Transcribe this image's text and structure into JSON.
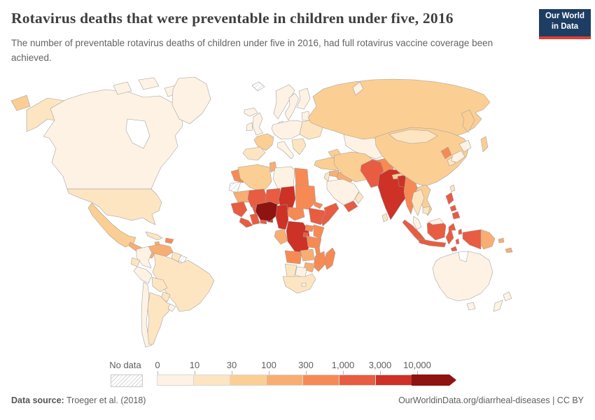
{
  "header": {
    "title": "Rotavirus deaths that were preventable in children under five, 2016",
    "subtitle": "The number of preventable rotavirus deaths of children under five in 2016, had full rotavirus vaccine coverage been achieved.",
    "logo_line1": "Our World",
    "logo_line2": "in Data",
    "logo_bg": "#1d3d63",
    "logo_accent": "#e23d33"
  },
  "footer": {
    "source_label": "Data source:",
    "source_value": " Troeger et al. (2018)",
    "license": "OurWorldinData.org/diarrheal-diseases | CC BY"
  },
  "chart_data": {
    "type": "heatmap",
    "subtype": "choropleth-world-map",
    "title": "Rotavirus deaths that were preventable in children under five, 2016",
    "legend": {
      "no_data_label": "No data",
      "ticks": [
        "0",
        "10",
        "30",
        "100",
        "300",
        "1,000",
        "3,000",
        "10,000"
      ],
      "position": "bottom"
    },
    "bins": [
      {
        "range": "0-10",
        "color": "#FDF2E4"
      },
      {
        "range": "10-30",
        "color": "#FDE5C2"
      },
      {
        "range": "30-100",
        "color": "#FBCE93"
      },
      {
        "range": "100-300",
        "color": "#F8AE72"
      },
      {
        "range": "300-1000",
        "color": "#F78A54"
      },
      {
        "range": "1000-3000",
        "color": "#E85C41"
      },
      {
        "range": "3000-10000",
        "color": "#CE3126"
      },
      {
        "range": "10000+",
        "color": "#8F1310"
      }
    ],
    "no_data_regions": [
      "western-sahara",
      "french-guiana",
      "svalbard"
    ],
    "countries": {
      "canada": 0,
      "arctic-islands-1": 0,
      "arctic-islands-2": 0,
      "arctic-islands-3": 0,
      "greenland": 0,
      "iceland": 0,
      "alaska": 1,
      "chukotka": 2,
      "usa": 1,
      "mexico": 2,
      "central-america": 3,
      "cuba": 1,
      "jamaica": 3,
      "hispaniola": 4,
      "venezuela": 3,
      "colombia": 0,
      "guyana-suriname": 1,
      "ecuador": 1,
      "peru": 0,
      "brazil": 1,
      "bolivia": 1,
      "paraguay": 1,
      "chile": 0,
      "argentina": 1,
      "uruguay": 0,
      "uk": 0,
      "ireland": 0,
      "norway": 0,
      "sweden": 0,
      "finland": 0,
      "baltics": 0,
      "denmark": 0,
      "central-europe": 0,
      "eastern-europe": 1,
      "france": 2,
      "iberia": 1,
      "italy": 0,
      "balkans": 1,
      "russia": 2,
      "kamchatka": 2,
      "sakhalin": 2,
      "novaya-zemlya": 0,
      "kazakhstan": 0,
      "central-asia": 3,
      "caucasus": 2,
      "turkey": 2,
      "syria": 3,
      "iraq": 3,
      "jordan-israel": 1,
      "saudi-arabia": 0,
      "yemen": 5,
      "oman": 1,
      "iran": 2,
      "afghanistan": 4,
      "pakistan": 5,
      "india": 6,
      "nepal": 2,
      "bangladesh": 6,
      "myanmar": 4,
      "sri-lanka": 1,
      "china": 2,
      "mongolia": 1,
      "north-korea": 4,
      "south-korea": 1,
      "japan-north": 0,
      "japan-south": 0,
      "taiwan": 1,
      "vietnam-laos": 2,
      "thailand": 1,
      "cambodia": 1,
      "malay-peninsula": 0,
      "sumatra": 5,
      "java": 5,
      "borneo-indonesia": 5,
      "borneo-malaysia": 0,
      "sulawesi": 5,
      "moluccas-1": 5,
      "moluccas-2": 5,
      "west-papua": 5,
      "papua-new-guinea": 3,
      "philippines-luzon": 5,
      "philippines-visayas": 5,
      "philippines-mindanao": 5,
      "east-timor": 5,
      "solomon-islands": 3,
      "new-caledonia": 3,
      "australia": 0,
      "tasmania": 0,
      "new-zealand-north": 0,
      "new-zealand-south": 0,
      "morocco": 4,
      "algeria": 2,
      "tunisia": 3,
      "libya": 0,
      "egypt": 4,
      "mauritania": 3,
      "mali": 5,
      "niger": 5,
      "chad": 6,
      "sudan": 4,
      "eritrea": 4,
      "senegal-guinea": 5,
      "sierra-leone-liberia": 5,
      "ivory-coast": 5,
      "ghana": 5,
      "togo-benin": 6,
      "burkina-faso": 5,
      "nigeria": 7,
      "cameroon": 6,
      "central-african-republic": 4,
      "gabon-congo": 3,
      "drc": 6,
      "uganda": 4,
      "kenya": 4,
      "ethiopia": 5,
      "somalia": 5,
      "rwanda-burundi": 5,
      "tanzania": 4,
      "angola": 4,
      "zambia": 3,
      "malawi": 4,
      "mozambique": 4,
      "zimbabwe": 3,
      "botswana": 0,
      "namibia": 1,
      "south-africa": 1,
      "lesotho": 0,
      "madagascar": 4
    }
  }
}
